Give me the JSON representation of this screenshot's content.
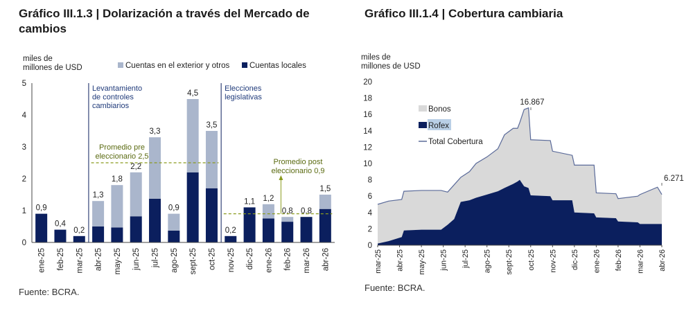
{
  "colors": {
    "foreign": "#aab6cc",
    "local": "#0b1f5e",
    "bonos": "#d9d9d9",
    "rofex": "#0b1f5e",
    "total_line": "#5a6a99",
    "avg_line": "#8a9a1e"
  },
  "left": {
    "title": "Gráfico III.1.3 | Dolarización a través del Mercado de cambios",
    "ylabel_line1": "miles de",
    "ylabel_line2": "millones de USD",
    "source": "Fuente: BCRA.",
    "annotations": {
      "controls": [
        "Levantamiento",
        "de controles",
        "cambiarios"
      ],
      "elections": [
        "Elecciones",
        "legislativas"
      ],
      "avg_pre": [
        "Promedio pre",
        "eleccionario 2,5"
      ],
      "avg_post": [
        "Promedio post",
        "eleccionario 0,9"
      ]
    }
  },
  "right": {
    "title": "Gráfico III.1.4 | Cobertura cambiaria",
    "ylabel_line1": "miles de",
    "ylabel_line2": "millones de USD",
    "source": "Fuente: BCRA.",
    "peak_label": "16.867",
    "end_label": "6.271"
  },
  "chart_data": [
    {
      "type": "bar",
      "stacked": true,
      "categories": [
        "ene-25",
        "feb-25",
        "mar-25",
        "abr-25",
        "may-25",
        "jun-25",
        "jul-25",
        "ago-25",
        "sept-25",
        "oct-25",
        "nov-25",
        "dic-25",
        "ene-26",
        "feb-26",
        "mar-26",
        "abr-26"
      ],
      "series": [
        {
          "name": "Cuentas locales",
          "values": [
            0.9,
            0.4,
            0.2,
            0.5,
            0.47,
            0.82,
            1.37,
            0.37,
            2.2,
            1.7,
            0.2,
            1.1,
            0.75,
            0.65,
            0.8,
            1.05
          ]
        },
        {
          "name": "Cuentas en el exterior y otros",
          "values": [
            0,
            0,
            0,
            0.8,
            1.33,
            1.38,
            1.93,
            0.53,
            2.3,
            1.8,
            0,
            0,
            0.45,
            0.15,
            0,
            0.45
          ]
        }
      ],
      "totals_labels": [
        "0,9",
        "0,4",
        "0,2",
        "1,3",
        "1,8",
        "2,2",
        "3,3",
        "0,9",
        "4,5",
        "3,5",
        "0,2",
        "1,1",
        "1,2",
        "0,8",
        "0,8",
        "1,5"
      ],
      "ylim": [
        0,
        5
      ],
      "yticks": [
        "0",
        "1",
        "2",
        "3",
        "4",
        "5"
      ],
      "reference_lines": [
        {
          "label": "Promedio pre eleccionario 2,5",
          "value": 2.5,
          "from": "abr-25",
          "to": "oct-25"
        },
        {
          "label": "Promedio post eleccionario 0,9",
          "value": 0.9,
          "from": "nov-25",
          "to": "abr-26"
        }
      ],
      "event_markers": [
        "Levantamiento de controles cambiarios",
        "Elecciones legislativas"
      ],
      "legend_position": "top"
    },
    {
      "type": "area",
      "stacked": true,
      "x_ticks": [
        "mar-25",
        "abr-25",
        "may-25",
        "jun-25",
        "jul-25",
        "ago-25",
        "sept-25",
        "oct-25",
        "nov-25",
        "dic-25",
        "ene-26",
        "feb-26",
        "mar-26",
        "abr-26"
      ],
      "ylim": [
        0,
        20
      ],
      "yticks": [
        "0",
        "2",
        "4",
        "6",
        "8",
        "10",
        "12",
        "14",
        "16",
        "18",
        "20"
      ],
      "series": [
        {
          "name": "Rofex",
          "points": [
            [
              0,
              0.2
            ],
            [
              0.5,
              0.5
            ],
            [
              1.1,
              1.0
            ],
            [
              1.2,
              1.8
            ],
            [
              2,
              1.9
            ],
            [
              2.9,
              1.9
            ],
            [
              3.2,
              2.5
            ],
            [
              3.5,
              3.2
            ],
            [
              3.8,
              5.3
            ],
            [
              4.2,
              5.5
            ],
            [
              4.5,
              5.8
            ],
            [
              5.0,
              6.2
            ],
            [
              5.5,
              6.6
            ],
            [
              5.8,
              7.0
            ],
            [
              6.2,
              7.5
            ],
            [
              6.4,
              7.8
            ],
            [
              6.5,
              8.0
            ],
            [
              6.7,
              7.2
            ],
            [
              6.9,
              7.0
            ],
            [
              7.0,
              6.1
            ],
            [
              7.9,
              6.0
            ],
            [
              8.0,
              5.5
            ],
            [
              8.9,
              5.5
            ],
            [
              9.0,
              4.0
            ],
            [
              9.9,
              3.9
            ],
            [
              10.0,
              3.4
            ],
            [
              10.9,
              3.3
            ],
            [
              11.0,
              2.9
            ],
            [
              11.9,
              2.8
            ],
            [
              12.0,
              2.6
            ],
            [
              12.8,
              2.6
            ],
            [
              13.0,
              2.6
            ]
          ]
        },
        {
          "name": "Bonos",
          "points": [
            [
              0,
              4.8
            ],
            [
              0.5,
              4.9
            ],
            [
              1.1,
              4.6
            ],
            [
              1.2,
              4.8
            ],
            [
              2,
              4.8
            ],
            [
              2.9,
              4.8
            ],
            [
              3.2,
              4.0
            ],
            [
              3.5,
              4.2
            ],
            [
              3.8,
              3.0
            ],
            [
              4.2,
              3.5
            ],
            [
              4.5,
              4.2
            ],
            [
              5.0,
              4.6
            ],
            [
              5.5,
              5.2
            ],
            [
              5.8,
              6.5
            ],
            [
              6.2,
              6.8
            ],
            [
              6.4,
              6.5
            ],
            [
              6.5,
              7.0
            ],
            [
              6.7,
              9.4
            ],
            [
              6.9,
              9.8
            ],
            [
              7.0,
              6.8
            ],
            [
              7.9,
              6.8
            ],
            [
              8.0,
              6.0
            ],
            [
              8.9,
              5.5
            ],
            [
              9.0,
              5.8
            ],
            [
              9.9,
              5.9
            ],
            [
              10.0,
              3.0
            ],
            [
              10.9,
              3.0
            ],
            [
              11.0,
              2.8
            ],
            [
              11.9,
              3.2
            ],
            [
              12.0,
              3.6
            ],
            [
              12.8,
              4.5
            ],
            [
              13.0,
              3.6
            ]
          ]
        }
      ],
      "total_series": {
        "name": "Total Cobertura",
        "peak": 16.867,
        "last": 6.271
      },
      "legend_position": "top-left"
    }
  ]
}
